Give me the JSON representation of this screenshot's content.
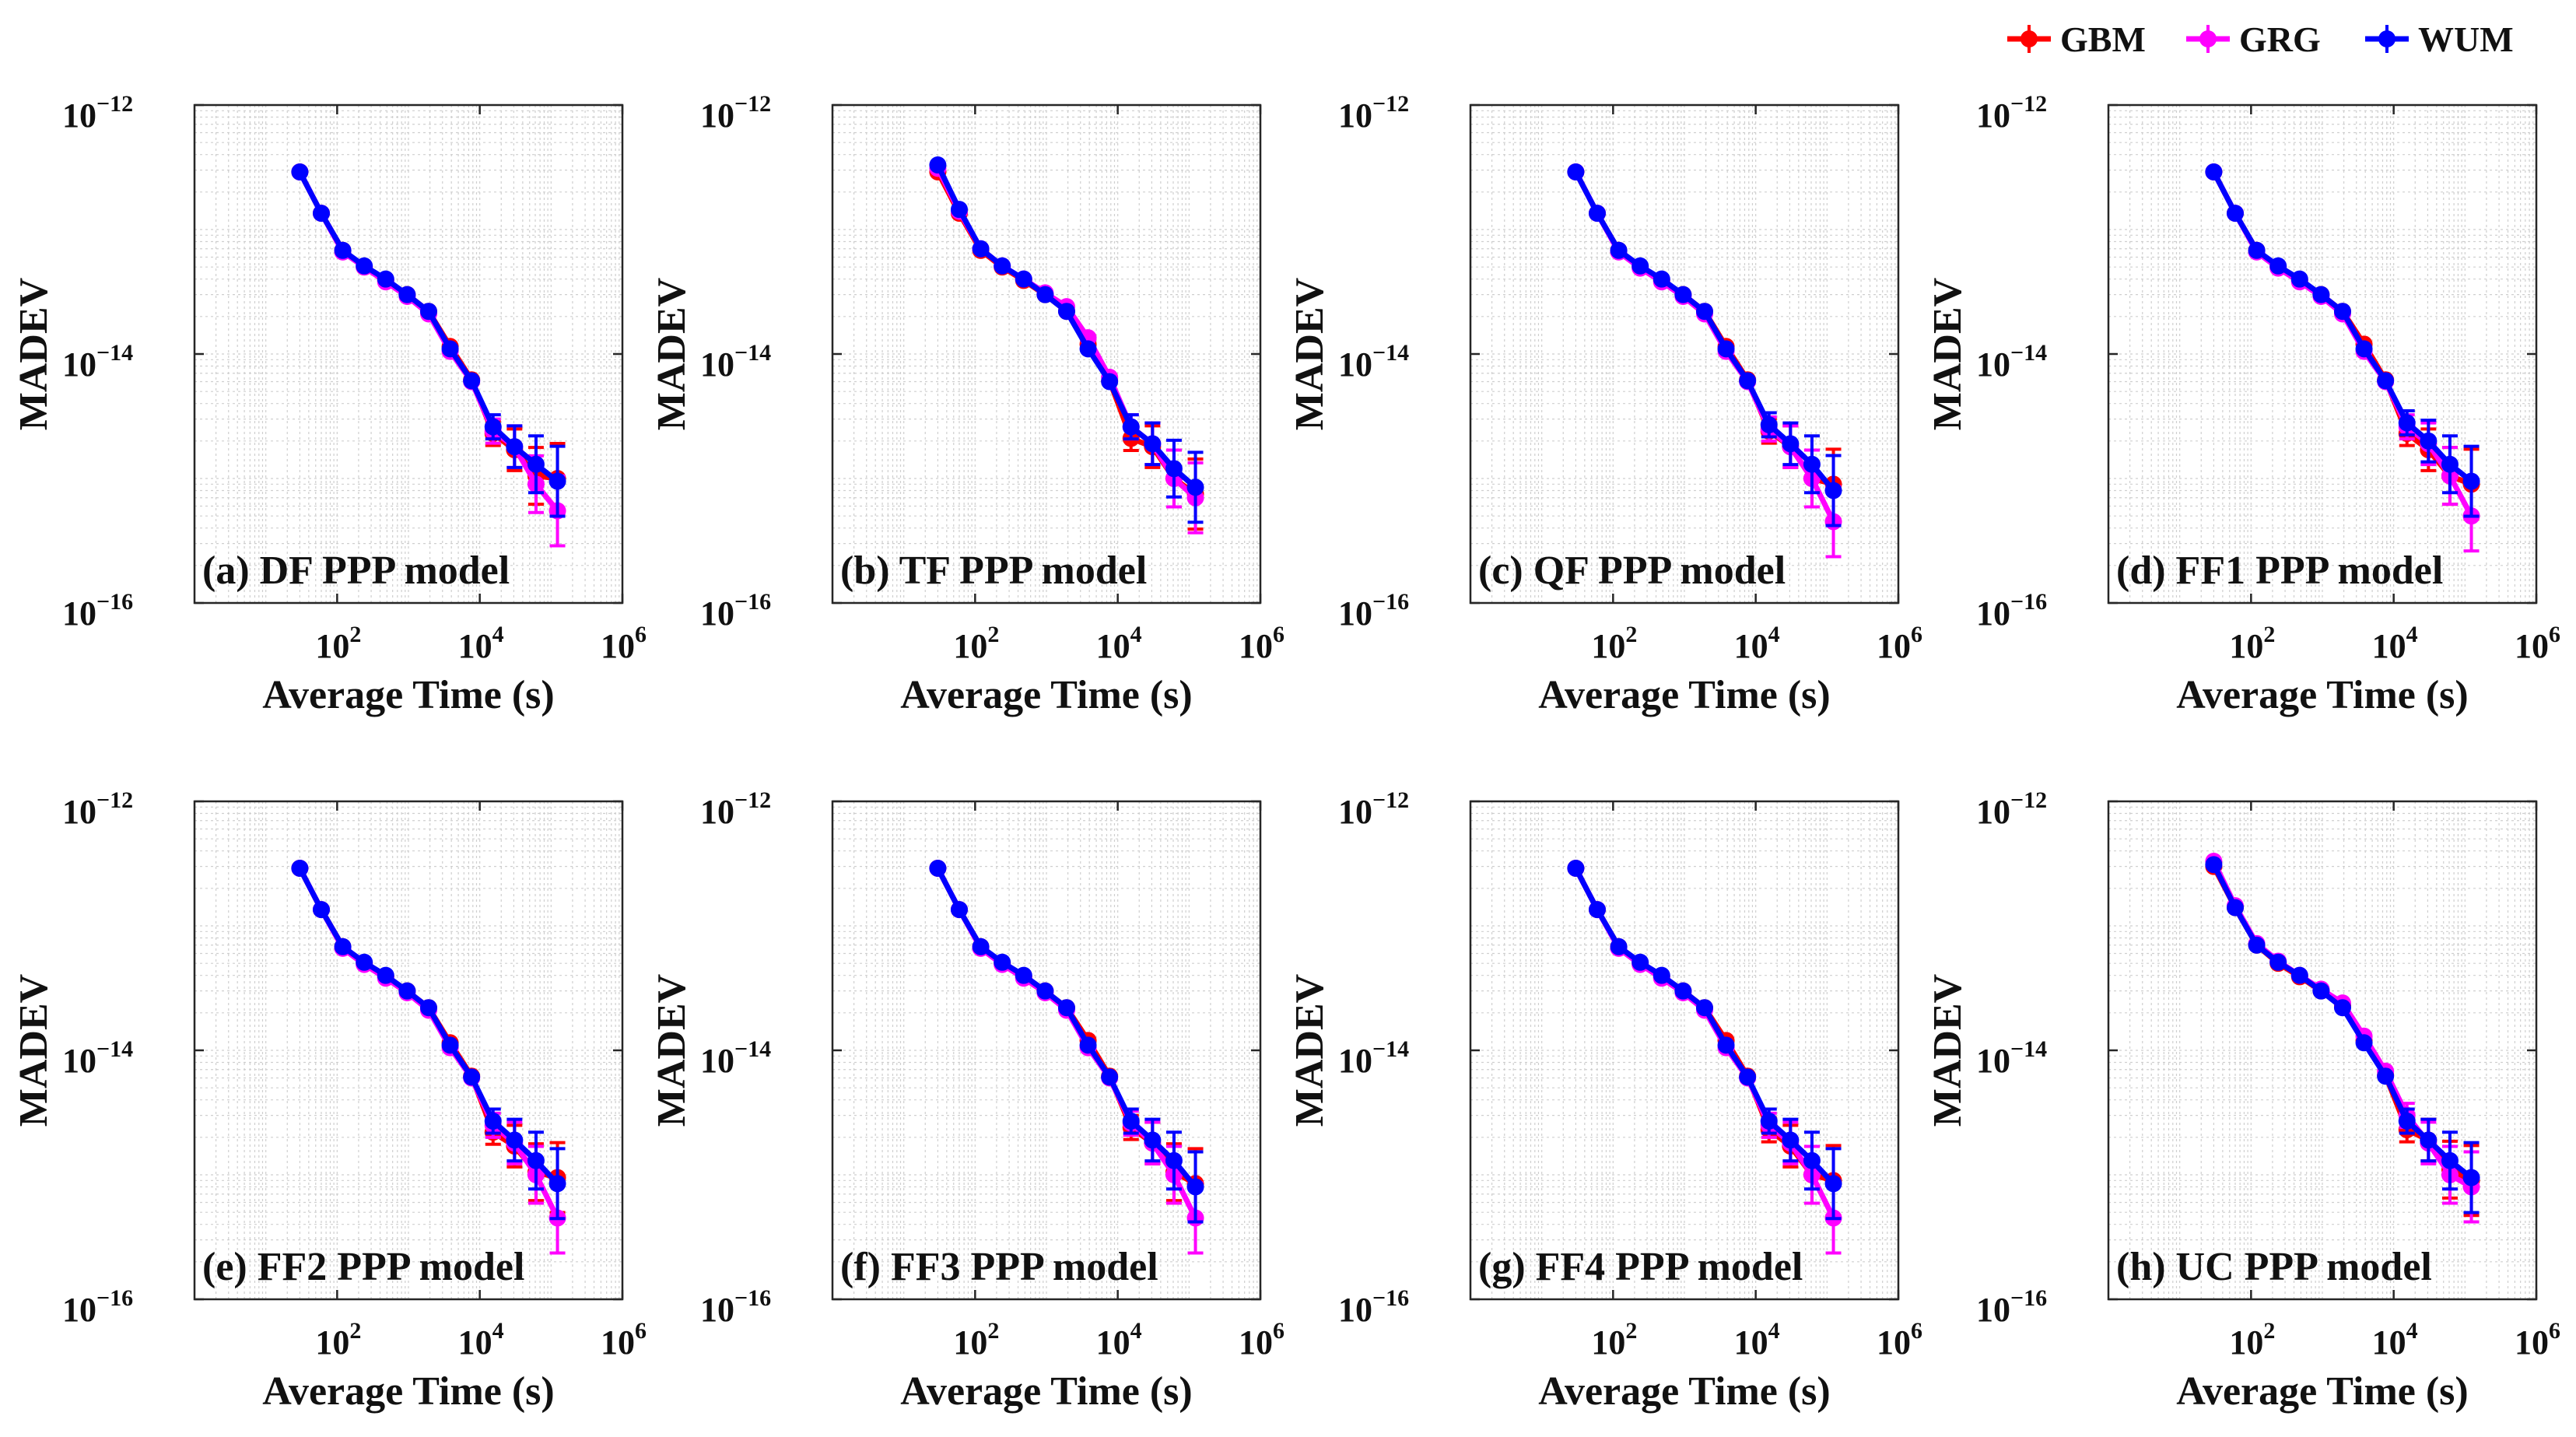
{
  "legend": {
    "entries": [
      {
        "name": "GBM",
        "color": "#ff0000"
      },
      {
        "name": "GRG",
        "color": "#ff00ff"
      },
      {
        "name": "WUM",
        "color": "#0000ff"
      }
    ],
    "placement": "top-right"
  },
  "shared_axes": {
    "type": "line",
    "xscale": "log",
    "yscale": "log",
    "xlabel": "Average Time (s)",
    "ylabel": "MADEV",
    "xlim": [
      1,
      1000000
    ],
    "ylim": [
      1e-16,
      1e-12
    ],
    "xtick_values": [
      100,
      10000,
      1000000
    ],
    "xtick_bases": [
      "10",
      "10",
      "10"
    ],
    "xtick_exponents": [
      "2",
      "4",
      "6"
    ],
    "ytick_values": [
      1e-12,
      1e-14,
      1e-16
    ],
    "ytick_bases": [
      "10",
      "10",
      "10"
    ],
    "ytick_exponents": [
      "−12",
      "−14",
      "−16"
    ],
    "grid": true,
    "x": [
      30,
      60,
      120,
      240,
      480,
      960,
      1920,
      3840,
      7680,
      15360,
      30720,
      61440,
      122880
    ]
  },
  "chart_data": [
    {
      "type": "line",
      "title": "(a) DF PPP model",
      "series": [
        {
          "name": "GBM",
          "values": [
            2.9e-13,
            1.35e-13,
            6.8e-14,
            5e-14,
            3.9e-14,
            3e-14,
            2.2e-14,
            1.15e-14,
            6.2e-15,
            2.3e-15,
            1.7e-15,
            1.05e-15,
            1e-15
          ]
        },
        {
          "name": "GRG",
          "values": [
            2.9e-13,
            1.35e-13,
            6.6e-14,
            5e-14,
            3.8e-14,
            2.9e-14,
            2.1e-14,
            1.05e-14,
            6e-15,
            2.4e-15,
            1.8e-15,
            9e-16,
            5.5e-16
          ]
        },
        {
          "name": "WUM",
          "values": [
            2.9e-13,
            1.35e-13,
            6.8e-14,
            5.1e-14,
            4e-14,
            3e-14,
            2.2e-14,
            1.1e-14,
            6.1e-15,
            2.6e-15,
            1.8e-15,
            1.3e-15,
            9.5e-16
          ]
        }
      ]
    },
    {
      "type": "line",
      "title": "(b) TF PPP model",
      "series": [
        {
          "name": "GBM",
          "values": [
            2.9e-13,
            1.35e-13,
            6.8e-14,
            5e-14,
            3.9e-14,
            3e-14,
            2.2e-14,
            1.2e-14,
            6.1e-15,
            2.1e-15,
            1.8e-15,
            1e-15,
            7.5e-16
          ]
        },
        {
          "name": "GRG",
          "values": [
            3.1e-13,
            1.4e-13,
            7e-14,
            5.1e-14,
            4e-14,
            3.1e-14,
            2.4e-14,
            1.35e-14,
            6.5e-15,
            2.6e-15,
            1.9e-15,
            1e-15,
            7e-16
          ]
        },
        {
          "name": "WUM",
          "values": [
            3.3e-13,
            1.45e-13,
            7e-14,
            5.1e-14,
            4e-14,
            3e-14,
            2.2e-14,
            1.1e-14,
            6e-15,
            2.6e-15,
            1.9e-15,
            1.2e-15,
            8.5e-16
          ]
        }
      ]
    },
    {
      "type": "line",
      "title": "(c) QF PPP model",
      "series": [
        {
          "name": "GBM",
          "values": [
            2.9e-13,
            1.35e-13,
            6.8e-14,
            5e-14,
            3.9e-14,
            3e-14,
            2.2e-14,
            1.15e-14,
            6.2e-15,
            2.4e-15,
            1.8e-15,
            1e-15,
            9e-16
          ]
        },
        {
          "name": "GRG",
          "values": [
            2.9e-13,
            1.35e-13,
            6.6e-14,
            4.9e-14,
            3.8e-14,
            2.9e-14,
            2.1e-14,
            1.05e-14,
            6e-15,
            2.5e-15,
            1.8e-15,
            1e-15,
            4.5e-16
          ]
        },
        {
          "name": "WUM",
          "values": [
            2.9e-13,
            1.35e-13,
            6.8e-14,
            5.1e-14,
            4e-14,
            3e-14,
            2.2e-14,
            1.1e-14,
            6.1e-15,
            2.7e-15,
            1.9e-15,
            1.3e-15,
            8e-16
          ]
        }
      ]
    },
    {
      "type": "line",
      "title": "(d) FF1 PPP model",
      "series": [
        {
          "name": "GBM",
          "values": [
            2.9e-13,
            1.35e-13,
            6.8e-14,
            5e-14,
            3.9e-14,
            3e-14,
            2.2e-14,
            1.2e-14,
            6.2e-15,
            2.3e-15,
            1.7e-15,
            1.05e-15,
            9e-16
          ]
        },
        {
          "name": "GRG",
          "values": [
            2.9e-13,
            1.35e-13,
            6.6e-14,
            4.9e-14,
            3.8e-14,
            2.9e-14,
            2.1e-14,
            1.05e-14,
            6e-15,
            2.6e-15,
            1.9e-15,
            1.05e-15,
            5e-16
          ]
        },
        {
          "name": "WUM",
          "values": [
            2.9e-13,
            1.35e-13,
            6.8e-14,
            5.1e-14,
            4e-14,
            3e-14,
            2.2e-14,
            1.1e-14,
            6.1e-15,
            2.8e-15,
            2e-15,
            1.3e-15,
            9.5e-16
          ]
        }
      ]
    },
    {
      "type": "line",
      "title": "(e) FF2 PPP model",
      "series": [
        {
          "name": "GBM",
          "values": [
            2.9e-13,
            1.35e-13,
            6.8e-14,
            5e-14,
            3.9e-14,
            3e-14,
            2.2e-14,
            1.15e-14,
            6.2e-15,
            2.2e-15,
            1.7e-15,
            1.05e-15,
            9.5e-16
          ]
        },
        {
          "name": "GRG",
          "values": [
            2.9e-13,
            1.35e-13,
            6.6e-14,
            4.9e-14,
            3.8e-14,
            2.9e-14,
            2.1e-14,
            1.05e-14,
            6e-15,
            2.5e-15,
            1.8e-15,
            1e-15,
            4.5e-16
          ]
        },
        {
          "name": "WUM",
          "values": [
            2.9e-13,
            1.35e-13,
            6.8e-14,
            5.1e-14,
            4e-14,
            3e-14,
            2.2e-14,
            1.1e-14,
            6.1e-15,
            2.7e-15,
            1.9e-15,
            1.3e-15,
            8.5e-16
          ]
        }
      ]
    },
    {
      "type": "line",
      "title": "(f) FF3 PPP model",
      "series": [
        {
          "name": "GBM",
          "values": [
            2.9e-13,
            1.35e-13,
            6.8e-14,
            5e-14,
            3.9e-14,
            3e-14,
            2.2e-14,
            1.2e-14,
            6.2e-15,
            2.4e-15,
            1.8e-15,
            1.05e-15,
            8.5e-16
          ]
        },
        {
          "name": "GRG",
          "values": [
            2.9e-13,
            1.35e-13,
            6.6e-14,
            4.9e-14,
            3.8e-14,
            2.9e-14,
            2.1e-14,
            1.05e-14,
            6e-15,
            2.6e-15,
            1.8e-15,
            1e-15,
            4.5e-16
          ]
        },
        {
          "name": "WUM",
          "values": [
            2.9e-13,
            1.35e-13,
            6.8e-14,
            5.1e-14,
            4e-14,
            3e-14,
            2.2e-14,
            1.1e-14,
            6.1e-15,
            2.7e-15,
            1.9e-15,
            1.3e-15,
            8e-16
          ]
        }
      ]
    },
    {
      "type": "line",
      "title": "(g) FF4 PPP model",
      "series": [
        {
          "name": "GBM",
          "values": [
            2.9e-13,
            1.35e-13,
            6.8e-14,
            5e-14,
            3.9e-14,
            3e-14,
            2.2e-14,
            1.2e-14,
            6.2e-15,
            2.3e-15,
            1.7e-15,
            1e-15,
            9e-16
          ]
        },
        {
          "name": "GRG",
          "values": [
            2.9e-13,
            1.35e-13,
            6.6e-14,
            4.9e-14,
            3.8e-14,
            2.9e-14,
            2.1e-14,
            1.05e-14,
            6e-15,
            2.5e-15,
            1.8e-15,
            1e-15,
            4.5e-16
          ]
        },
        {
          "name": "WUM",
          "values": [
            2.9e-13,
            1.35e-13,
            6.8e-14,
            5.1e-14,
            4e-14,
            3e-14,
            2.2e-14,
            1.1e-14,
            6.1e-15,
            2.7e-15,
            1.9e-15,
            1.3e-15,
            8.5e-16
          ]
        }
      ]
    },
    {
      "type": "line",
      "title": "(h) UC PPP model",
      "series": [
        {
          "name": "GBM",
          "values": [
            3e-13,
            1.4e-13,
            7e-14,
            5e-14,
            3.9e-14,
            3e-14,
            2.3e-14,
            1.2e-14,
            6.3e-15,
            2.3e-15,
            1.9e-15,
            1.1e-15,
            9e-16
          ]
        },
        {
          "name": "GRG",
          "values": [
            3.3e-13,
            1.45e-13,
            7.2e-14,
            5.2e-14,
            4e-14,
            3.1e-14,
            2.4e-14,
            1.3e-14,
            6.8e-15,
            3e-15,
            1.8e-15,
            1e-15,
            8e-16
          ]
        },
        {
          "name": "WUM",
          "values": [
            3.1e-13,
            1.4e-13,
            7e-14,
            5.1e-14,
            4e-14,
            3e-14,
            2.2e-14,
            1.15e-14,
            6.2e-15,
            2.7e-15,
            1.9e-15,
            1.3e-15,
            9.5e-16
          ]
        }
      ]
    }
  ]
}
